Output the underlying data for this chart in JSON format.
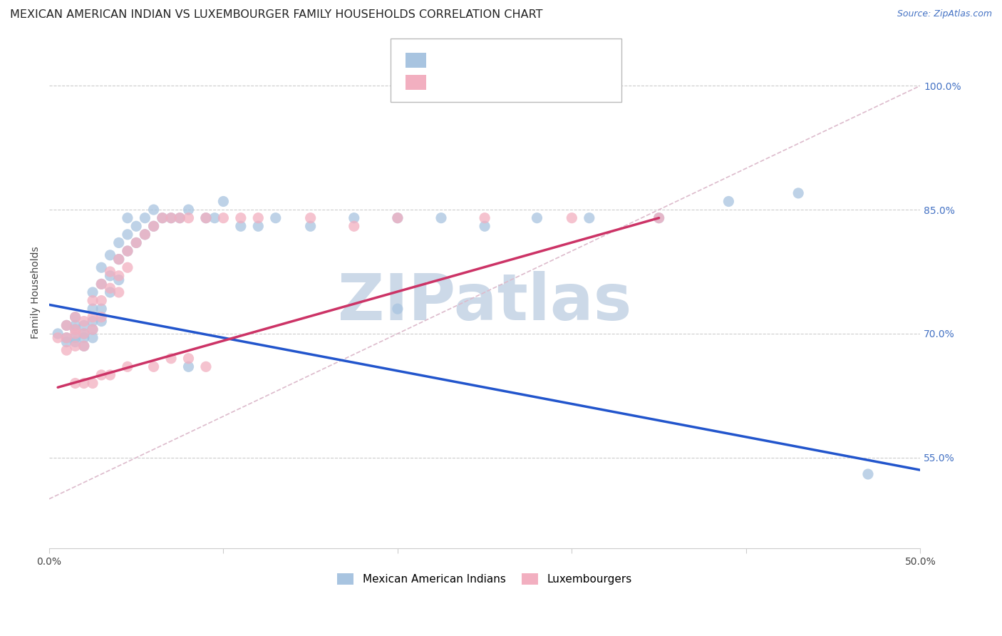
{
  "title": "MEXICAN AMERICAN INDIAN VS LUXEMBOURGER FAMILY HOUSEHOLDS CORRELATION CHART",
  "source": "Source: ZipAtlas.com",
  "ylabel": "Family Households",
  "y_ticks_labels": [
    "100.0%",
    "85.0%",
    "70.0%",
    "55.0%"
  ],
  "y_tick_vals": [
    1.0,
    0.85,
    0.7,
    0.55
  ],
  "x_lim": [
    0.0,
    0.5
  ],
  "y_lim": [
    0.44,
    1.06
  ],
  "blue_color": "#a8c4e0",
  "pink_color": "#f2afc0",
  "blue_line_color": "#2255cc",
  "pink_line_color": "#cc3366",
  "diagonal_color": "#cccccc",
  "background_color": "#ffffff",
  "grid_color": "#cccccc",
  "blue_scatter_x": [
    0.005,
    0.01,
    0.01,
    0.01,
    0.015,
    0.015,
    0.015,
    0.015,
    0.015,
    0.02,
    0.02,
    0.02,
    0.02,
    0.025,
    0.025,
    0.025,
    0.025,
    0.025,
    0.03,
    0.03,
    0.03,
    0.03,
    0.035,
    0.035,
    0.035,
    0.04,
    0.04,
    0.04,
    0.045,
    0.045,
    0.045,
    0.05,
    0.05,
    0.055,
    0.055,
    0.06,
    0.06,
    0.065,
    0.07,
    0.075,
    0.08,
    0.09,
    0.095,
    0.1,
    0.11,
    0.12,
    0.13,
    0.15,
    0.175,
    0.2,
    0.225,
    0.25,
    0.28,
    0.31,
    0.35,
    0.39,
    0.43,
    0.47,
    0.2,
    0.08
  ],
  "blue_scatter_y": [
    0.7,
    0.71,
    0.695,
    0.69,
    0.72,
    0.71,
    0.705,
    0.695,
    0.69,
    0.71,
    0.7,
    0.695,
    0.685,
    0.75,
    0.73,
    0.715,
    0.705,
    0.695,
    0.78,
    0.76,
    0.73,
    0.715,
    0.795,
    0.77,
    0.75,
    0.81,
    0.79,
    0.765,
    0.84,
    0.82,
    0.8,
    0.83,
    0.81,
    0.84,
    0.82,
    0.85,
    0.83,
    0.84,
    0.84,
    0.84,
    0.85,
    0.84,
    0.84,
    0.86,
    0.83,
    0.83,
    0.84,
    0.83,
    0.84,
    0.84,
    0.84,
    0.83,
    0.84,
    0.84,
    0.84,
    0.86,
    0.87,
    0.53,
    0.73,
    0.66
  ],
  "pink_scatter_x": [
    0.005,
    0.01,
    0.01,
    0.01,
    0.015,
    0.015,
    0.015,
    0.015,
    0.02,
    0.02,
    0.02,
    0.025,
    0.025,
    0.025,
    0.03,
    0.03,
    0.03,
    0.035,
    0.035,
    0.04,
    0.04,
    0.04,
    0.045,
    0.045,
    0.05,
    0.055,
    0.06,
    0.065,
    0.07,
    0.075,
    0.08,
    0.09,
    0.1,
    0.11,
    0.12,
    0.15,
    0.175,
    0.2,
    0.25,
    0.3,
    0.35,
    0.03,
    0.06,
    0.07,
    0.08,
    0.09,
    0.025,
    0.035,
    0.02,
    0.015,
    0.045
  ],
  "pink_scatter_y": [
    0.695,
    0.71,
    0.695,
    0.68,
    0.72,
    0.705,
    0.7,
    0.685,
    0.715,
    0.7,
    0.685,
    0.74,
    0.72,
    0.705,
    0.76,
    0.74,
    0.72,
    0.775,
    0.755,
    0.79,
    0.77,
    0.75,
    0.8,
    0.78,
    0.81,
    0.82,
    0.83,
    0.84,
    0.84,
    0.84,
    0.84,
    0.84,
    0.84,
    0.84,
    0.84,
    0.84,
    0.83,
    0.84,
    0.84,
    0.84,
    0.84,
    0.65,
    0.66,
    0.67,
    0.67,
    0.66,
    0.64,
    0.65,
    0.64,
    0.64,
    0.66
  ],
  "blue_line_x": [
    0.0,
    0.5
  ],
  "blue_line_y": [
    0.735,
    0.535
  ],
  "pink_line_x": [
    0.005,
    0.35
  ],
  "pink_line_y": [
    0.635,
    0.84
  ],
  "diag_line_x": [
    0.0,
    0.5
  ],
  "diag_line_y": [
    0.5,
    1.0
  ],
  "watermark": "ZIPatlas",
  "watermark_color": "#ccd9e8",
  "watermark_fontsize": 65,
  "title_fontsize": 11.5,
  "axis_label_fontsize": 10,
  "tick_fontsize": 10,
  "legend_fontsize": 11,
  "source_fontsize": 9
}
